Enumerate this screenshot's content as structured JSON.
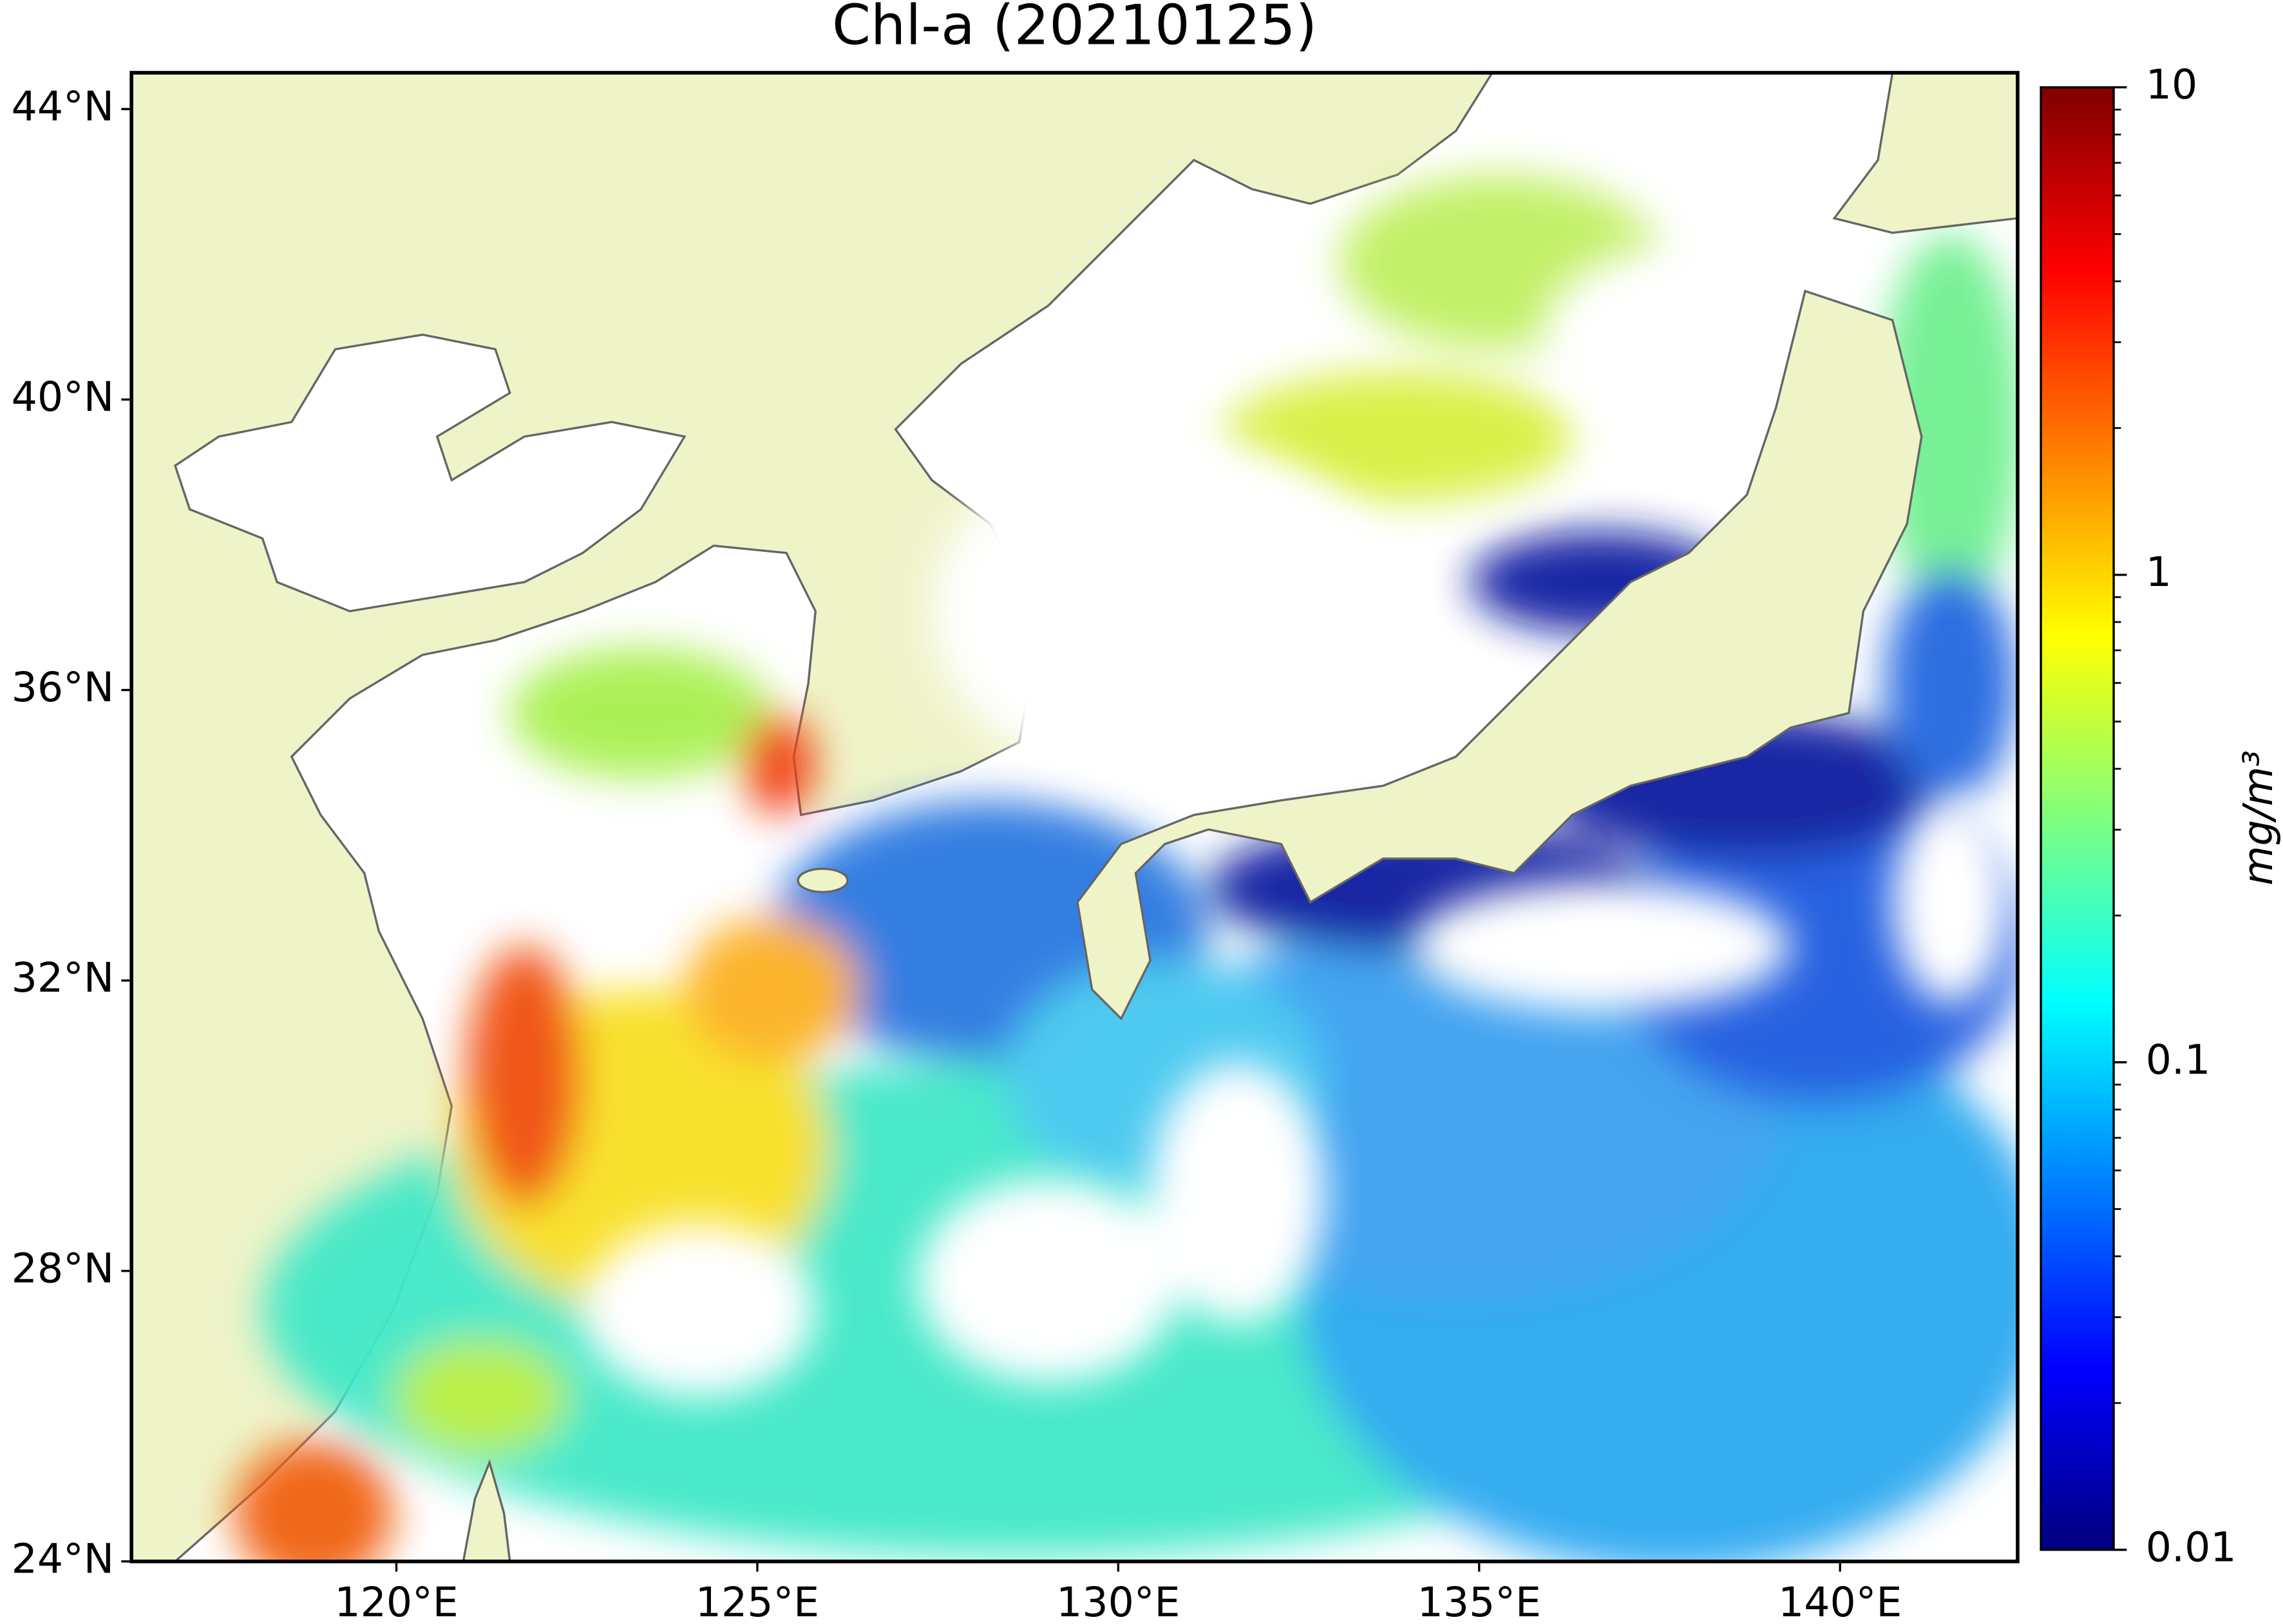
{
  "map": {
    "title": "Chl-a (20210125)",
    "xlim": [
      116.33,
      142.46
    ],
    "ylim": [
      24,
      44.5
    ],
    "lon_ticks": [
      {
        "value": 120,
        "label": "120°E"
      },
      {
        "value": 125,
        "label": "125°E"
      },
      {
        "value": 130,
        "label": "130°E"
      },
      {
        "value": 135,
        "label": "135°E"
      },
      {
        "value": 140,
        "label": "140°E"
      }
    ],
    "lat_ticks": [
      {
        "value": 24,
        "label": "24°N"
      },
      {
        "value": 28,
        "label": "28°N"
      },
      {
        "value": 32,
        "label": "32°N"
      },
      {
        "value": 36,
        "label": "36°N"
      },
      {
        "value": 40,
        "label": "40°N"
      },
      {
        "value": 44,
        "label": "44°N"
      }
    ],
    "colorbar": {
      "label": "mg/m³",
      "scale": "log",
      "colormap": "jet",
      "lim": [
        0.01,
        10
      ],
      "ticks": [
        0.01,
        0.1,
        1,
        10
      ]
    }
  }
}
